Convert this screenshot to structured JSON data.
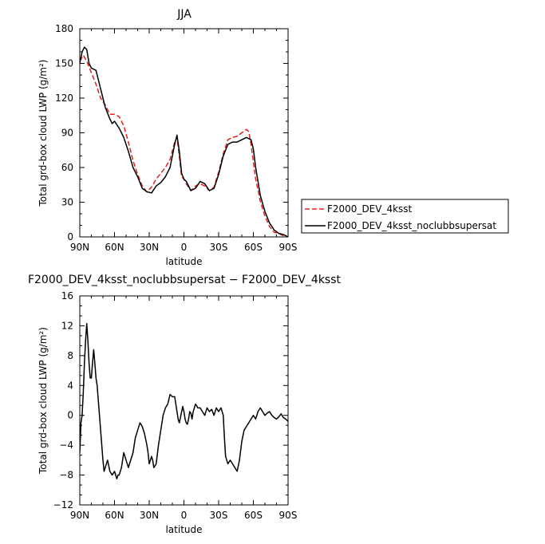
{
  "chart_data": [
    {
      "type": "line",
      "title": "JJA",
      "xlabel": "latitude",
      "ylabel": "Total grd-box cloud LWP (g/m²)",
      "xlim": [
        90,
        -90
      ],
      "ylim": [
        0,
        180
      ],
      "x_ticks": [
        90,
        60,
        30,
        0,
        -30,
        -60,
        -90
      ],
      "x_tick_labels": [
        "90N",
        "60N",
        "30N",
        "0",
        "30S",
        "60S",
        "90S"
      ],
      "y_ticks": [
        0,
        30,
        60,
        90,
        120,
        150,
        180
      ],
      "y_tick_labels": [
        "0",
        "30",
        "60",
        "90",
        "120",
        "150",
        "180"
      ],
      "legend_placement": "right, outside plot",
      "series": [
        {
          "name": "F2000_DEV_4ksst",
          "color": "#e02020",
          "style": "dashed",
          "x": [
            90,
            87,
            84,
            80,
            76,
            72,
            68,
            64,
            60,
            56,
            52,
            48,
            44,
            40,
            36,
            32,
            28,
            24,
            20,
            16,
            12,
            8,
            6,
            4,
            2,
            0,
            -2,
            -6,
            -10,
            -14,
            -18,
            -22,
            -26,
            -30,
            -34,
            -38,
            -42,
            -46,
            -50,
            -54,
            -56,
            -58,
            -60,
            -62,
            -66,
            -70,
            -74,
            -78,
            -82,
            -86,
            -90
          ],
          "values": [
            152,
            157,
            152,
            142,
            132,
            120,
            114,
            106,
            106,
            104,
            96,
            82,
            66,
            54,
            44,
            39,
            43,
            50,
            55,
            60,
            67,
            82,
            86,
            70,
            52,
            50,
            46,
            40,
            44,
            46,
            44,
            40,
            43,
            56,
            72,
            84,
            86,
            87,
            90,
            93,
            91,
            80,
            65,
            50,
            31,
            18,
            9,
            4,
            3,
            1,
            0
          ]
        },
        {
          "name": "F2000_DEV_4ksst_noclubbsupersat",
          "color": "#000000",
          "style": "solid",
          "x": [
            90,
            88,
            86,
            84,
            82,
            80,
            76,
            72,
            68,
            64,
            62,
            60,
            56,
            52,
            48,
            44,
            40,
            36,
            32,
            28,
            24,
            20,
            16,
            12,
            8,
            6,
            4,
            2,
            0,
            -2,
            -6,
            -10,
            -14,
            -18,
            -22,
            -26,
            -30,
            -34,
            -38,
            -42,
            -46,
            -50,
            -54,
            -58,
            -60,
            -62,
            -64,
            -66,
            -70,
            -74,
            -78,
            -82,
            -86,
            -90
          ],
          "values": [
            150,
            160,
            164,
            162,
            150,
            146,
            144,
            128,
            112,
            102,
            98,
            100,
            94,
            86,
            74,
            60,
            52,
            42,
            39,
            38,
            44,
            47,
            52,
            60,
            80,
            88,
            74,
            55,
            50,
            48,
            40,
            42,
            48,
            46,
            40,
            42,
            54,
            70,
            80,
            82,
            82,
            84,
            86,
            84,
            76,
            60,
            48,
            36,
            22,
            12,
            6,
            3,
            2,
            0
          ]
        }
      ]
    },
    {
      "type": "line",
      "title": "F2000_DEV_4ksst_noclubbsupersat − F2000_DEV_4ksst",
      "xlabel": "latitude",
      "ylabel": "Total grd-box cloud LWP (g/m²)",
      "xlim": [
        90,
        -90
      ],
      "ylim": [
        -12,
        16
      ],
      "x_ticks": [
        90,
        60,
        30,
        0,
        -30,
        -60,
        -90
      ],
      "x_tick_labels": [
        "90N",
        "60N",
        "30N",
        "0",
        "30S",
        "60S",
        "90S"
      ],
      "y_ticks": [
        -12,
        -8,
        -4,
        0,
        4,
        8,
        12,
        16
      ],
      "y_tick_labels": [
        "−12",
        "−8",
        "−4",
        "0",
        "4",
        "8",
        "12",
        "16"
      ],
      "series": [
        {
          "name": "",
          "color": "#000000",
          "style": "solid",
          "x": [
            90,
            89,
            88,
            87,
            86,
            85,
            84,
            83,
            82,
            81,
            80,
            79,
            78,
            77,
            76,
            75,
            74,
            73,
            72,
            71,
            70,
            69,
            68,
            66,
            64,
            62,
            60,
            58,
            57,
            56,
            55,
            54,
            53,
            52,
            51,
            50,
            48,
            46,
            44,
            42,
            40,
            38,
            36,
            34,
            32,
            31,
            30,
            29,
            28,
            27,
            26,
            24,
            22,
            20,
            18,
            16,
            14,
            12,
            10,
            8,
            7,
            6,
            5,
            4,
            3,
            2,
            1,
            0,
            -1,
            -2,
            -3,
            -4,
            -5,
            -6,
            -7,
            -8,
            -9,
            -10,
            -11,
            -12,
            -14,
            -16,
            -18,
            -20,
            -22,
            -24,
            -26,
            -28,
            -30,
            -32,
            -34,
            -35,
            -36,
            -38,
            -40,
            -42,
            -44,
            -46,
            -48,
            -50,
            -52,
            -54,
            -56,
            -58,
            -60,
            -62,
            -64,
            -66,
            -68,
            -70,
            -72,
            -74,
            -76,
            -78,
            -80,
            -82,
            -84,
            -86,
            -88,
            -90
          ],
          "values": [
            -5,
            -1,
            0,
            3,
            7,
            10,
            12.3,
            10,
            7,
            5,
            5,
            7,
            8.8,
            7,
            5,
            4,
            2,
            0,
            -2,
            -4,
            -6,
            -7.5,
            -7,
            -6,
            -7.5,
            -8,
            -7.5,
            -8.5,
            -8,
            -8,
            -7.5,
            -7,
            -6,
            -5,
            -5.5,
            -6,
            -7,
            -6,
            -5,
            -3,
            -2,
            -1,
            -1.5,
            -2.5,
            -4,
            -5,
            -6.5,
            -6,
            -5.5,
            -6,
            -7,
            -6.5,
            -4,
            -2,
            0,
            1,
            1.5,
            2.8,
            2.5,
            2.5,
            1.5,
            0.5,
            -0.5,
            -1,
            -0.3,
            0.5,
            1.2,
            0.5,
            -0.5,
            -1,
            -1.2,
            -0.5,
            0.5,
            0.3,
            -0.5,
            0.5,
            1,
            1.5,
            1.3,
            1,
            1,
            0.5,
            0,
            1,
            0.5,
            0.8,
            0,
            1,
            0.5,
            1,
            0,
            -3,
            -5.5,
            -6.5,
            -6,
            -6.5,
            -7,
            -7.5,
            -6,
            -3.5,
            -2,
            -1.5,
            -1,
            -0.5,
            0,
            -0.5,
            0.5,
            1,
            0.5,
            0,
            0.3,
            0.5,
            0,
            -0.3,
            -0.5,
            -0.2,
            0.2,
            -0.3,
            -0.5,
            -0.8
          ]
        }
      ]
    }
  ]
}
